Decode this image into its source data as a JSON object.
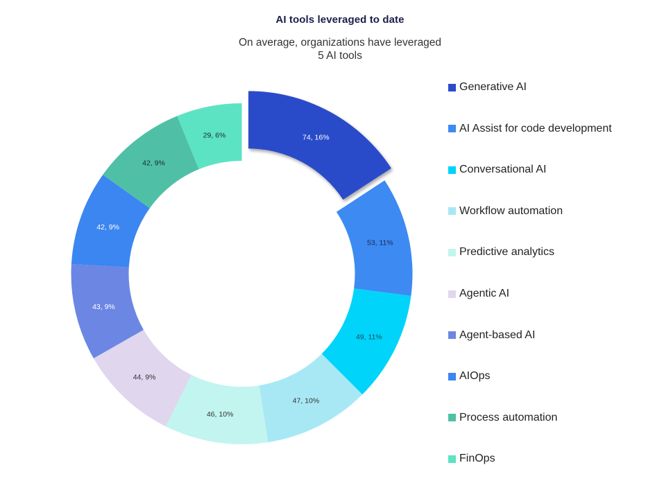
{
  "header": {
    "title": "AI tools leveraged to date",
    "subtitle_line1": "On average, organizations have leveraged",
    "subtitle_line2": "5 AI tools"
  },
  "chart_data": {
    "type": "pie",
    "variant": "donut",
    "title": "AI tools leveraged to date",
    "subtitle": "On average, organizations have leveraged 5 AI tools",
    "start_angle": "12 o'clock, clockwise",
    "exploded_slice": "Generative AI",
    "legend_position": "right",
    "categories": [
      "Generative AI",
      "AI Assist for code development",
      "Conversational AI",
      "Workflow automation",
      "Predictive analytics",
      "Agentic AI",
      "Agent-based AI",
      "AIOps",
      "Process automation",
      "FinOps"
    ],
    "values": [
      74,
      53,
      49,
      47,
      46,
      44,
      43,
      42,
      42,
      29
    ],
    "percentages": [
      16,
      11,
      11,
      10,
      10,
      9,
      9,
      9,
      9,
      6
    ],
    "data_labels": [
      "74, 16%",
      "53, 11%",
      "49, 11%",
      "47, 10%",
      "46, 10%",
      "44, 9%",
      "43, 9%",
      "42, 9%",
      "42, 9%",
      "29, 6%"
    ],
    "colors": [
      "#2a4bc9",
      "#3d8af2",
      "#00d4fa",
      "#a8e8f5",
      "#c2f5ef",
      "#e0d6ee",
      "#6b87e3",
      "#3b86f0",
      "#4fc0a6",
      "#5ce3c4"
    ],
    "label_colors": [
      "#ffffff",
      "#1b2a55",
      "#1b4a5a",
      "#333333",
      "#333333",
      "#333333",
      "#ffffff",
      "#ffffff",
      "#1a2a2a",
      "#1a2a2a"
    ]
  },
  "legend": {
    "items": [
      {
        "label": "Generative AI",
        "color": "#2a4bc9"
      },
      {
        "label": "AI Assist for code development",
        "color": "#3d8af2"
      },
      {
        "label": "Conversational AI",
        "color": "#00d4fa"
      },
      {
        "label": "Workflow automation",
        "color": "#a8e8f5"
      },
      {
        "label": "Predictive analytics",
        "color": "#c2f5ef"
      },
      {
        "label": "Agentic AI",
        "color": "#e0d6ee"
      },
      {
        "label": "Agent-based AI",
        "color": "#6b87e3"
      },
      {
        "label": "AIOps",
        "color": "#3b86f0"
      },
      {
        "label": "Process automation",
        "color": "#4fc0a6"
      },
      {
        "label": "FinOps",
        "color": "#5ce3c4"
      }
    ]
  }
}
